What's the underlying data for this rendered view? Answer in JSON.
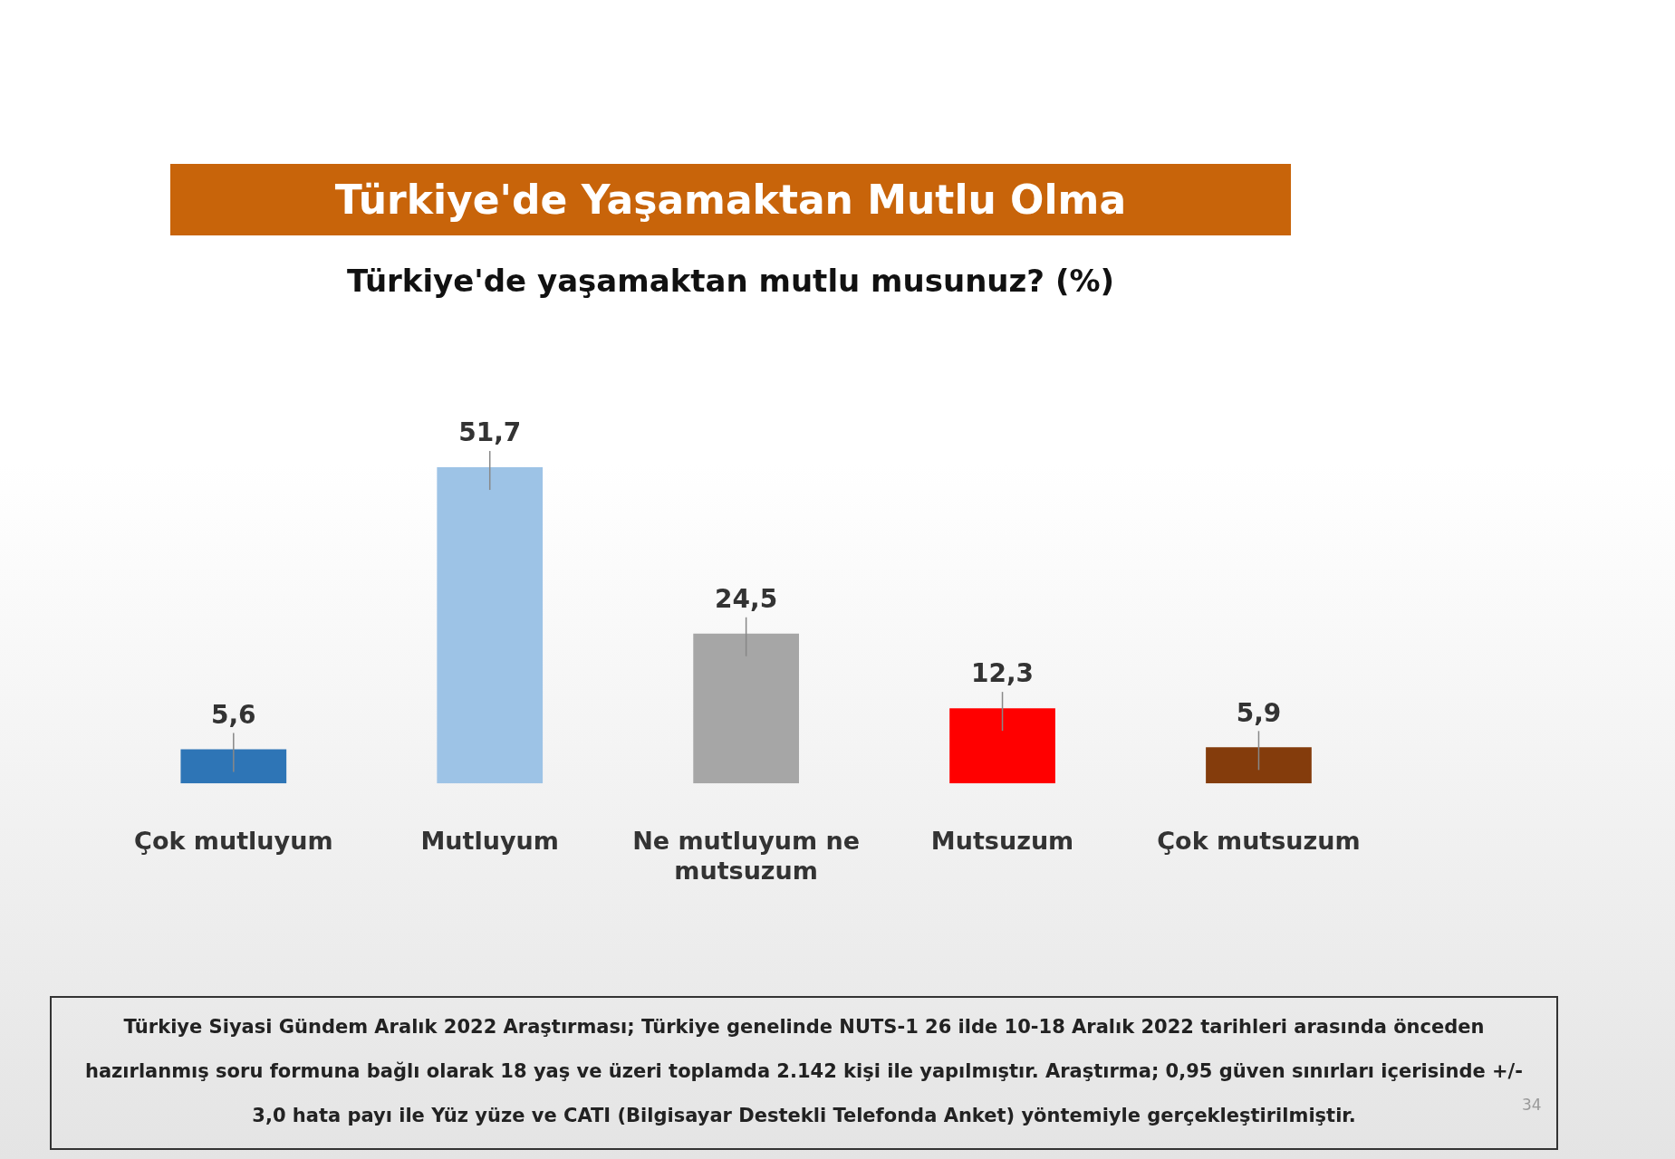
{
  "chart_data": {
    "type": "bar",
    "title": "Türkiye'de Yaşamaktan Mutlu Olma",
    "subtitle": "Türkiye'de yaşamaktan mutlu musunuz? (%)",
    "categories": [
      "Çok mutluyum",
      "Mutluyum",
      "Ne mutluyum ne mutsuzum",
      "Mutsuzum",
      "Çok mutsuzum"
    ],
    "values": [
      5.6,
      51.7,
      24.5,
      12.3,
      5.9
    ],
    "value_labels": [
      "5,6",
      "51,7",
      "24,5",
      "12,3",
      "5,9"
    ],
    "colors": [
      "#2e75b6",
      "#9dc3e6",
      "#a6a6a6",
      "#ff0000",
      "#843c0c"
    ],
    "grid": false,
    "legend": false,
    "annotations": [
      "Türkiye Siyasi Gündem Aralık 2022 Araştırması; Türkiye genelinde NUTS-1 26 ilde 10-18 Aralık 2022 tarihleri arasında önceden hazırlanmış soru formuna bağlı olarak 18 yaş ve üzeri toplamda 2.142 kişi ile yapılmıştır. Araştırma; 0,95 güven sınırları içerisinde +/- 3,0 hata payı ile Yüz yüze ve CATI (Bilgisayar Destekli Telefonda Anket) yöntemiyle gerçekleştirilmiştir.",
      "34"
    ]
  }
}
